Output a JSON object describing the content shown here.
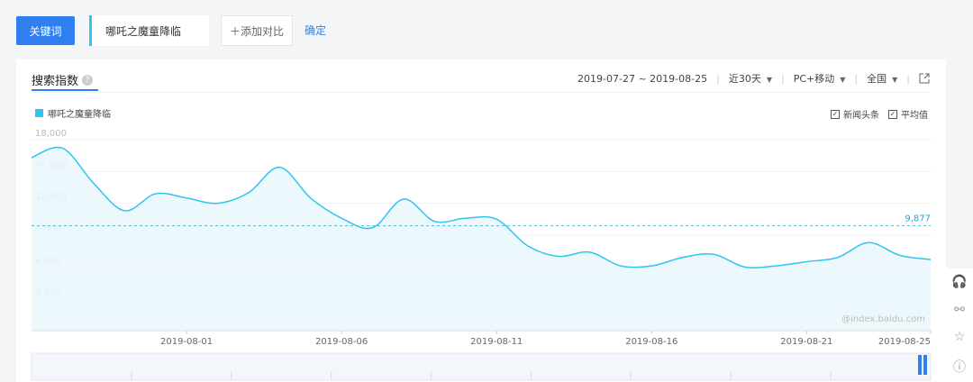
{
  "toolbar": {
    "keyword_btn": "关键词",
    "keyword_value": "哪吒之魔童降临",
    "add_compare": "＋添加对比",
    "confirm": "确定"
  },
  "panel": {
    "title": "搜索指数",
    "date_range": "2019-07-27 ~ 2019-08-25",
    "period": "近30天",
    "device": "PC+移动",
    "region": "全国",
    "check_news": "新闻头条",
    "check_avg": "平均值",
    "watermark": "@index.baidu.com",
    "help_glyph": "?",
    "caret_glyph": "▼",
    "check_glyph": "✓"
  },
  "chart_data": {
    "type": "area",
    "ylim": [
      0,
      18000
    ],
    "yticks": [
      "18,000",
      "15,000",
      "12,000",
      "9,000",
      "6,000",
      "3,000"
    ],
    "ytick_values": [
      18000,
      15000,
      12000,
      9000,
      6000,
      3000
    ],
    "xtick_labels": [
      "2019-08-01",
      "2019-08-06",
      "2019-08-11",
      "2019-08-16",
      "2019-08-21",
      "2019-08-25"
    ],
    "xtick_index": [
      5,
      10,
      15,
      20,
      25,
      29
    ],
    "series": [
      {
        "name": "哪吒之魔童降临",
        "color": "#2ec5f1",
        "values": [
          16300,
          17200,
          13900,
          11300,
          12900,
          12500,
          12000,
          13000,
          15400,
          12500,
          10600,
          9700,
          12400,
          10300,
          10600,
          10500,
          8000,
          7000,
          7400,
          6100,
          6100,
          6900,
          7200,
          6000,
          6100,
          6500,
          6900,
          8300,
          7100,
          6700
        ]
      }
    ],
    "average": 9877,
    "average_label": "9,877",
    "average_color": "#2ec5f1"
  },
  "side": {
    "icons": [
      "headset-icon",
      "share-icon",
      "star-icon",
      "help-icon"
    ],
    "glyphs": [
      "🎧",
      "⚯",
      "☆",
      "ⓘ"
    ]
  }
}
